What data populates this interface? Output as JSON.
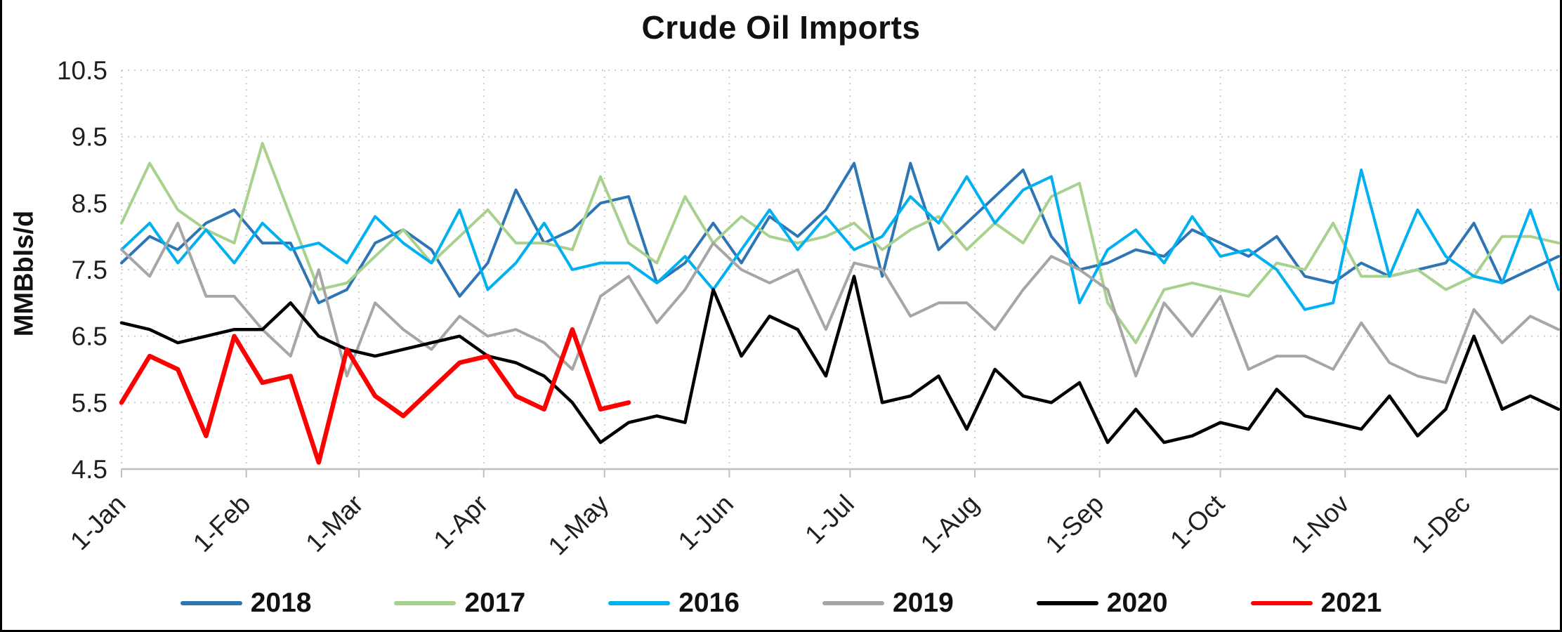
{
  "chart_data": {
    "type": "line",
    "title": "Crude Oil Imports",
    "ylabel": "MMBbls/d",
    "ylim": [
      4.5,
      10.5
    ],
    "ytick_step": 1.0,
    "grid": "dotted",
    "legend_position": "bottom",
    "x_tick_labels": [
      "1-Jan",
      "1-Feb",
      "1-Mar",
      "1-Apr",
      "1-May",
      "1-Jun",
      "1-Jul",
      "1-Aug",
      "1-Sep",
      "1-Oct",
      "1-Nov",
      "1-Dec"
    ],
    "month_day_offsets": [
      0,
      31,
      59,
      90,
      120,
      151,
      181,
      212,
      243,
      273,
      304,
      334
    ],
    "x_total_days": 357,
    "x_unit": "weekly",
    "series": [
      {
        "name": "2018",
        "color": "#2E75B6",
        "stroke_width": 4,
        "values": [
          7.6,
          8.0,
          7.8,
          8.2,
          8.4,
          7.9,
          7.9,
          7.0,
          7.2,
          7.9,
          8.1,
          7.8,
          7.1,
          7.6,
          8.7,
          7.9,
          8.1,
          8.5,
          8.6,
          7.3,
          7.6,
          8.2,
          7.6,
          8.3,
          8.0,
          8.4,
          9.1,
          7.4,
          9.1,
          7.8,
          8.2,
          8.6,
          9.0,
          8.0,
          7.5,
          7.6,
          7.8,
          7.7,
          8.1,
          7.9,
          7.7,
          8.0,
          7.4,
          7.3,
          7.6,
          7.4,
          7.5,
          7.6,
          8.2,
          7.3,
          7.5,
          7.7
        ]
      },
      {
        "name": "2017",
        "color": "#A9D18E",
        "stroke_width": 4,
        "values": [
          8.2,
          9.1,
          8.4,
          8.1,
          7.9,
          9.4,
          8.3,
          7.2,
          7.3,
          7.7,
          8.1,
          7.6,
          8.0,
          8.4,
          7.9,
          7.9,
          7.8,
          8.9,
          7.9,
          7.6,
          8.6,
          7.9,
          8.3,
          8.0,
          7.9,
          8.0,
          8.2,
          7.8,
          8.1,
          8.3,
          7.8,
          8.2,
          7.9,
          8.6,
          8.8,
          7.0,
          6.4,
          7.2,
          7.3,
          7.2,
          7.1,
          7.6,
          7.5,
          8.2,
          7.4,
          7.4,
          7.5,
          7.2,
          7.4,
          8.0,
          8.0,
          7.9
        ]
      },
      {
        "name": "2016",
        "color": "#00B0F0",
        "stroke_width": 4,
        "values": [
          7.8,
          8.2,
          7.6,
          8.1,
          7.6,
          8.2,
          7.8,
          7.9,
          7.6,
          8.3,
          7.9,
          7.6,
          8.4,
          7.2,
          7.6,
          8.2,
          7.5,
          7.6,
          7.6,
          7.3,
          7.7,
          7.2,
          7.8,
          8.4,
          7.8,
          8.3,
          7.8,
          8.0,
          8.6,
          8.2,
          8.9,
          8.2,
          8.7,
          8.9,
          7.0,
          7.8,
          8.1,
          7.6,
          8.3,
          7.7,
          7.8,
          7.5,
          6.9,
          7.0,
          9.0,
          7.4,
          8.4,
          7.7,
          7.4,
          7.3,
          8.4,
          7.2
        ]
      },
      {
        "name": "2019",
        "color": "#A6A6A6",
        "stroke_width": 4,
        "values": [
          7.8,
          7.4,
          8.2,
          7.1,
          7.1,
          6.6,
          6.2,
          7.5,
          5.9,
          7.0,
          6.6,
          6.3,
          6.8,
          6.5,
          6.6,
          6.4,
          6.0,
          7.1,
          7.4,
          6.7,
          7.2,
          7.9,
          7.5,
          7.3,
          7.5,
          6.6,
          7.6,
          7.5,
          6.8,
          7.0,
          7.0,
          6.6,
          7.2,
          7.7,
          7.5,
          7.2,
          5.9,
          7.0,
          6.5,
          7.1,
          6.0,
          6.2,
          6.2,
          6.0,
          6.7,
          6.1,
          5.9,
          5.8,
          6.9,
          6.4,
          6.8,
          6.6
        ]
      },
      {
        "name": "2020",
        "color": "#000000",
        "stroke_width": 4.5,
        "values": [
          6.7,
          6.6,
          6.4,
          6.5,
          6.6,
          6.6,
          7.0,
          6.5,
          6.3,
          6.2,
          6.3,
          6.4,
          6.5,
          6.2,
          6.1,
          5.9,
          5.5,
          4.9,
          5.2,
          5.3,
          5.2,
          7.2,
          6.2,
          6.8,
          6.6,
          5.9,
          7.4,
          5.5,
          5.6,
          5.9,
          5.1,
          6.0,
          5.6,
          5.5,
          5.8,
          4.9,
          5.4,
          4.9,
          5.0,
          5.2,
          5.1,
          5.7,
          5.3,
          5.2,
          5.1,
          5.6,
          5.0,
          5.4,
          6.5,
          5.4,
          5.6,
          5.4
        ]
      },
      {
        "name": "2021",
        "color": "#FF0000",
        "stroke_width": 6.5,
        "values": [
          5.5,
          6.2,
          6.0,
          5.0,
          6.5,
          5.8,
          5.9,
          4.6,
          6.3,
          5.6,
          5.3,
          5.7,
          6.1,
          6.2,
          5.6,
          5.4,
          6.6,
          5.4,
          5.5
        ]
      }
    ]
  }
}
